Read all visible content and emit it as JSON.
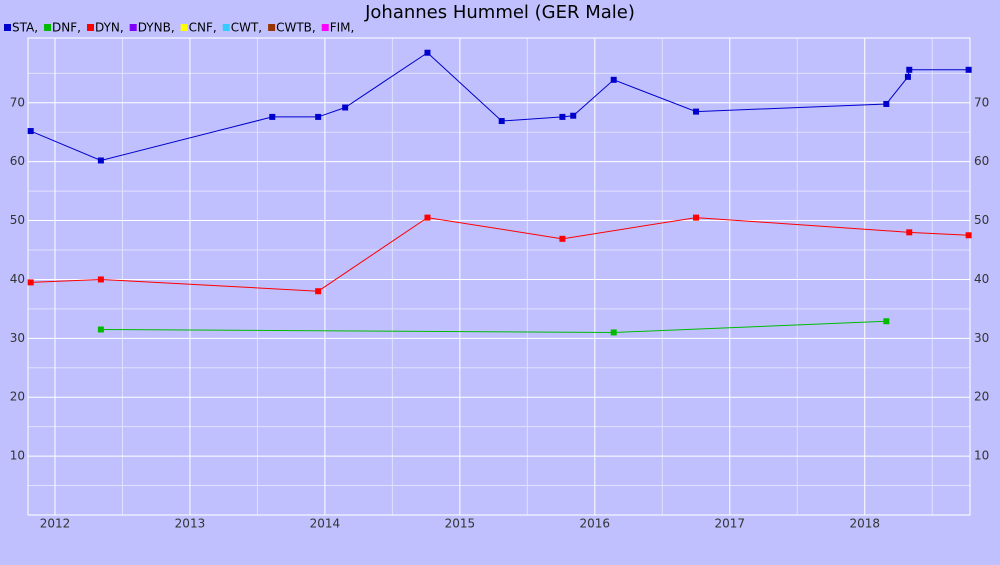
{
  "chart_data": {
    "type": "line",
    "title": "Johannes Hummel (GER Male)",
    "xlim": [
      2011.8,
      2018.78
    ],
    "xticks": [
      2012,
      2013,
      2014,
      2015,
      2016,
      2017,
      2018
    ],
    "minor_xticks": [
      2012.5,
      2013.5,
      2014.5,
      2015.5,
      2016.5,
      2017.5,
      2018.5
    ],
    "ylim": [
      0,
      81
    ],
    "yticks": [
      10,
      20,
      30,
      40,
      50,
      60,
      70
    ],
    "minor_yticks": [
      5,
      15,
      25,
      35,
      45,
      55,
      65,
      75
    ],
    "grid": true,
    "series": [
      {
        "name": "STA,",
        "color": "#0000cc",
        "x": [
          2011.82,
          2012.34,
          2013.61,
          2013.95,
          2014.15,
          2014.76,
          2015.31,
          2015.76,
          2015.84,
          2016.14,
          2016.75,
          2018.16,
          2018.32,
          2018.33,
          2018.77
        ],
        "values": [
          65.2,
          60.2,
          67.6,
          67.6,
          69.2,
          78.5,
          66.9,
          67.6,
          67.8,
          73.9,
          68.5,
          69.8,
          74.4,
          75.6,
          75.6
        ]
      },
      {
        "name": "DNF,",
        "color": "#00bb00",
        "x": [
          2012.34,
          2016.14,
          2018.16
        ],
        "values": [
          31.5,
          31.0,
          32.9
        ]
      },
      {
        "name": "DYN,",
        "color": "#ff0000",
        "x": [
          2011.82,
          2012.34,
          2013.95,
          2014.76,
          2015.76,
          2016.75,
          2018.33,
          2018.77
        ],
        "values": [
          39.5,
          40.0,
          38.0,
          50.5,
          46.9,
          50.5,
          48.0,
          47.5
        ]
      },
      {
        "name": "DYNB,",
        "color": "#8000ff",
        "x": [],
        "values": []
      },
      {
        "name": "CNF,",
        "color": "#ffff00",
        "x": [],
        "values": []
      },
      {
        "name": "CWT,",
        "color": "#33ccff",
        "x": [],
        "values": []
      },
      {
        "name": "CWTB,",
        "color": "#993300",
        "x": [],
        "values": []
      },
      {
        "name": "FIM,",
        "color": "#ff00ff",
        "x": [],
        "values": []
      }
    ]
  }
}
